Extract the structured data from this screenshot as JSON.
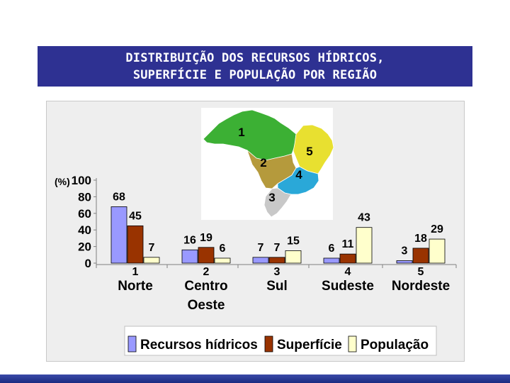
{
  "title": {
    "line1": "DISTRIBUIÇÃO DOS RECURSOS HÍDRICOS,",
    "line2": "SUPERFÍCIE E POPULAÇÃO POR REGIÃO"
  },
  "colors": {
    "title_bg": "#2e3192",
    "recursos": "#9999ff",
    "superficie": "#993300",
    "populacao": "#ffffcc"
  },
  "chart_data": {
    "type": "bar",
    "ylabel": "(%)",
    "ylim": [
      0,
      100
    ],
    "yticks": [
      "100",
      "80",
      "60",
      "40",
      "20",
      "0"
    ],
    "categories": [
      {
        "number": "1",
        "name": "Norte"
      },
      {
        "number": "2",
        "name": "Centro Oeste"
      },
      {
        "number": "3",
        "name": "Sul"
      },
      {
        "number": "4",
        "name": "Sudeste"
      },
      {
        "number": "5",
        "name": "Nordeste"
      }
    ],
    "series": [
      {
        "name": "Recursos hídricos",
        "values": [
          68,
          16,
          7,
          6,
          3
        ]
      },
      {
        "name": "Superfície",
        "values": [
          45,
          19,
          7,
          11,
          18
        ]
      },
      {
        "name": "População",
        "values": [
          7,
          6,
          15,
          43,
          29
        ]
      }
    ],
    "legend_position": "bottom",
    "grid": false
  },
  "map": {
    "region_numbers": [
      "1",
      "2",
      "3",
      "4",
      "5"
    ],
    "colors": {
      "norte": "#3cb034",
      "centro_oeste": "#b59a3c",
      "sul": "#c8c8c8",
      "sudeste": "#2aa8d8",
      "nordeste": "#e8e030"
    }
  }
}
